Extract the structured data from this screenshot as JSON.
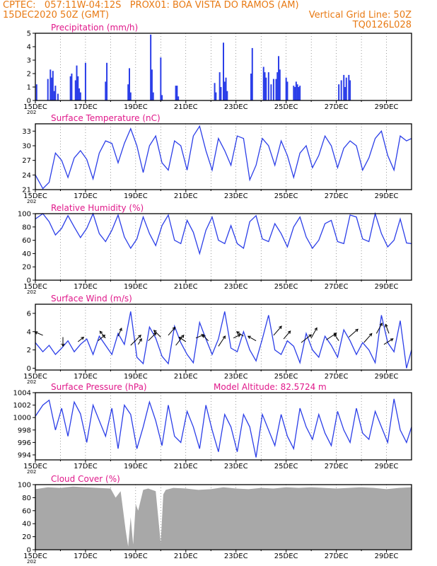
{
  "header": {
    "line1_left": "CPTEC:   057:11W-04:12S   PROX01: BOA VISTA DO RAMOS (AM)",
    "line2_left": "15DEC2020 50Z (GMT)",
    "line2_right": "Vertical Grid Line: 50Z",
    "line3_right": "TQ0126L028"
  },
  "colors": {
    "line": "#2b3ee8",
    "title": "#e0188a",
    "header": "#e87a14",
    "cloud": "#a8a8a8"
  },
  "x_ticks": [
    "15DEC",
    "17DEC",
    "19DEC",
    "21DEC",
    "23DEC",
    "25DEC",
    "27DEC",
    "29DEC"
  ],
  "year_label": "202",
  "chart_data": [
    {
      "type": "bar",
      "title": "Precipitation (mm/h)",
      "ylim": [
        0,
        5
      ],
      "yticks": [
        0,
        1,
        2,
        3,
        4,
        5
      ],
      "x_unit": "days since 15DEC",
      "x": [
        0.05,
        0.5,
        0.6,
        0.65,
        0.7,
        0.75,
        0.8,
        0.9,
        1.4,
        1.45,
        1.6,
        1.65,
        1.7,
        1.75,
        1.8,
        2.0,
        2.8,
        2.85,
        3.7,
        3.75,
        3.8,
        4.6,
        4.65,
        4.7,
        5.0,
        5.05,
        5.6,
        5.65,
        5.7,
        7.15,
        7.2,
        7.35,
        7.4,
        7.5,
        7.55,
        7.6,
        7.65,
        8.6,
        8.65,
        9.1,
        9.15,
        9.2,
        9.3,
        9.4,
        9.5,
        9.6,
        9.65,
        9.7,
        9.75,
        10.0,
        10.05,
        10.3,
        10.35,
        10.4,
        10.45,
        10.5,
        10.55,
        12.1,
        12.2,
        12.3,
        12.35,
        12.4,
        12.5,
        12.55
      ],
      "values": [
        1.2,
        1.6,
        2.3,
        1.7,
        2.2,
        0.7,
        1.1,
        0.5,
        1.8,
        2.0,
        1.5,
        2.6,
        1.8,
        0.9,
        0.6,
        2.8,
        1.4,
        2.8,
        1.2,
        2.4,
        0.6,
        4.9,
        2.3,
        0.6,
        3.2,
        0.4,
        1.1,
        1.1,
        0.3,
        1.3,
        0.6,
        2.1,
        1.0,
        4.3,
        1.4,
        1.7,
        0.7,
        2.0,
        3.9,
        2.5,
        2.1,
        1.7,
        2.1,
        1.2,
        1.6,
        1.6,
        2.1,
        3.3,
        2.3,
        1.7,
        1.4,
        1.1,
        1.0,
        1.4,
        1.2,
        1.0,
        1.1,
        1.2,
        1.5,
        1.9,
        1.0,
        1.7,
        1.9,
        1.5
      ]
    },
    {
      "type": "line",
      "title": "Surface Temperature (nC)",
      "ylim": [
        21,
        34.5
      ],
      "yticks": [
        21,
        24,
        27,
        30,
        33
      ],
      "x_unit": "days since 15DEC",
      "x": [
        0,
        0.3,
        0.55,
        0.8,
        1.05,
        1.3,
        1.55,
        1.8,
        2.05,
        2.3,
        2.55,
        2.8,
        3.05,
        3.3,
        3.55,
        3.8,
        4.05,
        4.3,
        4.55,
        4.8,
        5.05,
        5.3,
        5.55,
        5.8,
        6.05,
        6.3,
        6.55,
        6.8,
        7.05,
        7.3,
        7.55,
        7.8,
        8.05,
        8.3,
        8.55,
        8.8,
        9.05,
        9.3,
        9.55,
        9.8,
        10.05,
        10.3,
        10.55,
        10.8,
        11.05,
        11.3,
        11.55,
        11.8,
        12.05,
        12.3,
        12.55,
        12.8,
        13.05,
        13.3,
        13.55,
        13.8,
        14.05,
        14.3,
        14.55,
        14.8,
        15.0
      ],
      "values": [
        24,
        21.2,
        22.5,
        28.5,
        27,
        23.5,
        27.5,
        29,
        27.2,
        23.2,
        28.5,
        31,
        30.5,
        26.5,
        30.5,
        33.5,
        30,
        24.5,
        30,
        32,
        26.5,
        25,
        31,
        30,
        25,
        32,
        34,
        29,
        25,
        31.5,
        29,
        26,
        32,
        31.5,
        23,
        26,
        31.5,
        30,
        26,
        31,
        28,
        23.5,
        28.5,
        30,
        25.5,
        28,
        32,
        30,
        25.5,
        29.5,
        31,
        30,
        25,
        27.5,
        31.5,
        33,
        28,
        25,
        32,
        31,
        31.5
      ]
    },
    {
      "type": "line",
      "title": "Relative Humidity (%)",
      "ylim": [
        0,
        100
      ],
      "yticks": [
        0,
        20,
        40,
        60,
        80,
        100
      ],
      "x_unit": "days since 15DEC",
      "x": [
        0,
        0.3,
        0.55,
        0.8,
        1.05,
        1.3,
        1.55,
        1.8,
        2.05,
        2.3,
        2.55,
        2.8,
        3.05,
        3.3,
        3.55,
        3.8,
        4.05,
        4.3,
        4.55,
        4.8,
        5.05,
        5.3,
        5.55,
        5.8,
        6.05,
        6.3,
        6.55,
        6.8,
        7.05,
        7.3,
        7.55,
        7.8,
        8.05,
        8.3,
        8.55,
        8.8,
        9.05,
        9.3,
        9.55,
        9.8,
        10.05,
        10.3,
        10.55,
        10.8,
        11.05,
        11.3,
        11.55,
        11.8,
        12.05,
        12.3,
        12.55,
        12.8,
        13.05,
        13.3,
        13.55,
        13.8,
        14.05,
        14.3,
        14.55,
        14.8,
        15.0
      ],
      "values": [
        92,
        100,
        88,
        68,
        78,
        97,
        80,
        64,
        78,
        100,
        70,
        58,
        75,
        98,
        65,
        48,
        62,
        95,
        70,
        52,
        82,
        98,
        60,
        55,
        90,
        72,
        40,
        75,
        95,
        60,
        55,
        82,
        55,
        48,
        88,
        97,
        62,
        58,
        85,
        70,
        50,
        80,
        95,
        65,
        48,
        60,
        85,
        90,
        58,
        55,
        98,
        95,
        62,
        58,
        100,
        70,
        50,
        60,
        92,
        56,
        55
      ]
    },
    {
      "type": "line",
      "title": "Surface Wind (m/s)",
      "ylim": [
        -0.2,
        7
      ],
      "yticks": [
        0,
        2,
        4,
        6
      ],
      "x_unit": "days since 15DEC",
      "x": [
        0,
        0.3,
        0.55,
        0.8,
        1.05,
        1.3,
        1.55,
        1.8,
        2.05,
        2.3,
        2.55,
        2.8,
        3.05,
        3.3,
        3.55,
        3.8,
        4.05,
        4.3,
        4.55,
        4.8,
        5.05,
        5.3,
        5.55,
        5.8,
        6.05,
        6.3,
        6.55,
        6.8,
        7.05,
        7.3,
        7.55,
        7.8,
        8.05,
        8.3,
        8.55,
        8.8,
        9.05,
        9.3,
        9.55,
        9.8,
        10.05,
        10.3,
        10.55,
        10.8,
        11.05,
        11.3,
        11.55,
        11.8,
        12.05,
        12.3,
        12.55,
        12.8,
        13.05,
        13.3,
        13.55,
        13.8,
        14.05,
        14.3,
        14.55,
        14.8,
        15.0
      ],
      "values": [
        2.8,
        1.8,
        2.5,
        1.5,
        2.2,
        3,
        1.8,
        2.6,
        3.2,
        1.5,
        3.5,
        2.5,
        1.5,
        3.8,
        2.6,
        6.2,
        1.2,
        0.5,
        4.5,
        3.3,
        1.3,
        0.5,
        4.6,
        2.8,
        1.5,
        0.6,
        5.0,
        3.2,
        1.5,
        3.2,
        6.2,
        2.2,
        1.8,
        4.0,
        2.0,
        0.8,
        3.2,
        5.8,
        2.0,
        1.5,
        3.0,
        2.4,
        0.6,
        3.8,
        2.0,
        1.2,
        3.5,
        2.5,
        1.2,
        4.2,
        3.0,
        1.5,
        2.8,
        2.0,
        0.6,
        5.8,
        2.8,
        1.8,
        5.2,
        0.0,
        2.0
      ]
    },
    {
      "type": "line",
      "title": "Surface Pressure (hPa)",
      "ylim": [
        993.2,
        1004
      ],
      "yticks": [
        994,
        996,
        998,
        1000,
        1002,
        1004
      ],
      "x_unit": "days since 15DEC",
      "x": [
        0,
        0.3,
        0.55,
        0.8,
        1.05,
        1.3,
        1.55,
        1.8,
        2.05,
        2.3,
        2.55,
        2.8,
        3.05,
        3.3,
        3.55,
        3.8,
        4.05,
        4.3,
        4.55,
        4.8,
        5.05,
        5.3,
        5.55,
        5.8,
        6.05,
        6.3,
        6.55,
        6.8,
        7.05,
        7.3,
        7.55,
        7.8,
        8.05,
        8.3,
        8.55,
        8.8,
        9.05,
        9.3,
        9.55,
        9.8,
        10.05,
        10.3,
        10.55,
        10.8,
        11.05,
        11.3,
        11.55,
        11.8,
        12.05,
        12.3,
        12.55,
        12.8,
        13.05,
        13.3,
        13.55,
        13.8,
        14.05,
        14.3,
        14.55,
        14.8,
        15.0
      ],
      "values": [
        1000.2,
        1002,
        1002.8,
        998,
        1001.5,
        997,
        1002.5,
        1000.6,
        996,
        1002,
        999.5,
        997,
        1001.5,
        995,
        1002,
        1000.5,
        995,
        998.5,
        1002.5,
        999.5,
        995.5,
        1002,
        997,
        996,
        1001,
        998.5,
        995,
        1002,
        998,
        994.5,
        1000.5,
        998.5,
        994.5,
        1000.5,
        998.5,
        993.6,
        1000.5,
        998,
        995.5,
        1000.5,
        997,
        995,
        1001.5,
        998.5,
        996.5,
        1000.5,
        997.5,
        995.5,
        1001,
        998,
        996,
        1001.5,
        997.5,
        996.5,
        1001,
        998.5,
        996,
        1003,
        998,
        996,
        998.5
      ]
    },
    {
      "type": "area",
      "title": "Cloud Cover (%)",
      "ylim": [
        0,
        100
      ],
      "yticks": [
        0,
        20,
        40,
        60,
        80,
        100
      ],
      "x_unit": "days since 15DEC",
      "x": [
        0,
        0.5,
        1.0,
        1.5,
        2.0,
        2.5,
        3.0,
        3.2,
        3.4,
        3.6,
        3.7,
        3.8,
        3.9,
        4.0,
        4.1,
        4.3,
        4.5,
        4.8,
        5.0,
        5.1,
        5.2,
        5.5,
        6.0,
        6.5,
        7.0,
        7.5,
        8.0,
        8.5,
        9.0,
        9.5,
        10.0,
        10.5,
        11.0,
        11.5,
        12.0,
        12.5,
        13.0,
        13.5,
        14.0,
        14.5,
        15.0
      ],
      "values": [
        93,
        96,
        95,
        97,
        96,
        95,
        94,
        80,
        90,
        30,
        5,
        50,
        8,
        70,
        60,
        92,
        94,
        90,
        10,
        85,
        92,
        95,
        94,
        92,
        93,
        96,
        94,
        93,
        95,
        94,
        96,
        95,
        96,
        95,
        94,
        95,
        96,
        95,
        93,
        95,
        96
      ]
    }
  ],
  "panel_extras": {
    "pressure_annotation": "Model Altitude: 82.5724  m"
  },
  "wind_arrows": [
    {
      "x": 0.3,
      "speed": 3.6,
      "dx": -0.7,
      "dy": 0.3
    },
    {
      "x": 1.1,
      "speed": 3.4,
      "dx": 0,
      "dy": -0.8
    },
    {
      "x": 1.7,
      "speed": 2.9,
      "dx": 0.5,
      "dy": 0.4
    },
    {
      "x": 2.5,
      "speed": 3.0,
      "dx": 0.6,
      "dy": 0.5
    },
    {
      "x": 2.8,
      "speed": 3.3,
      "dx": -0.5,
      "dy": 0.6
    },
    {
      "x": 3.3,
      "speed": 3.5,
      "dx": 0.3,
      "dy": 0.7
    },
    {
      "x": 3.8,
      "speed": 2.5,
      "dx": 0.9,
      "dy": 0.9
    },
    {
      "x": 4.1,
      "speed": 2.6,
      "dx": 0.3,
      "dy": 0.5
    },
    {
      "x": 4.5,
      "speed": 3.0,
      "dx": 0.7,
      "dy": 0.7
    },
    {
      "x": 5.0,
      "speed": 3.4,
      "dx": -0.6,
      "dy": 0.6
    },
    {
      "x": 5.3,
      "speed": 3.6,
      "dx": 0.6,
      "dy": 0.7
    },
    {
      "x": 5.6,
      "speed": 2.5,
      "dx": 0.7,
      "dy": 0.9
    },
    {
      "x": 6.0,
      "speed": 2.9,
      "dx": -0.6,
      "dy": 0.4
    },
    {
      "x": 6.4,
      "speed": 3.3,
      "dx": 0.7,
      "dy": 0.3
    },
    {
      "x": 6.9,
      "speed": 3.0,
      "dx": -0.5,
      "dy": 0.5
    },
    {
      "x": 7.3,
      "speed": 2.4,
      "dx": 0.6,
      "dy": 0.9
    },
    {
      "x": 7.9,
      "speed": 3.3,
      "dx": 0.6,
      "dy": 0.3
    },
    {
      "x": 8.3,
      "speed": 3.5,
      "dx": -0.6,
      "dy": 0.4
    },
    {
      "x": 8.8,
      "speed": 3.0,
      "dx": -0.7,
      "dy": 0.4
    },
    {
      "x": 9.5,
      "speed": 3.6,
      "dx": 0.7,
      "dy": 0.8
    },
    {
      "x": 9.9,
      "speed": 3.2,
      "dx": 0.6,
      "dy": 0.7
    },
    {
      "x": 10.6,
      "speed": 2.8,
      "dx": 0.9,
      "dy": 0.7
    },
    {
      "x": 11.0,
      "speed": 3.3,
      "dx": 0.5,
      "dy": 0.9
    },
    {
      "x": 11.6,
      "speed": 3.1,
      "dx": 0.9,
      "dy": 0.6
    },
    {
      "x": 12.1,
      "speed": 3.0,
      "dx": -0.4,
      "dy": 0.6
    },
    {
      "x": 12.5,
      "speed": 3.4,
      "dx": 0.8,
      "dy": 0.7
    },
    {
      "x": 13.1,
      "speed": 2.8,
      "dx": 0.7,
      "dy": 0.8
    },
    {
      "x": 13.6,
      "speed": 3.8,
      "dx": 0.5,
      "dy": 0.9
    },
    {
      "x": 13.9,
      "speed": 2.6,
      "dx": 0.8,
      "dy": 0.5
    },
    {
      "x": 14.1,
      "speed": 3.8,
      "dx": -0.3,
      "dy": 0.8
    }
  ]
}
